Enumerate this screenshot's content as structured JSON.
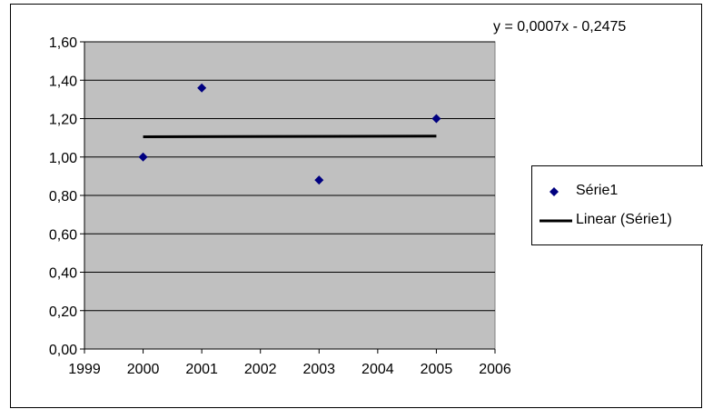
{
  "chart_data": {
    "type": "scatter",
    "x_ticks": [
      "1999",
      "2000",
      "2001",
      "2002",
      "2003",
      "2004",
      "2005",
      "2006"
    ],
    "y_ticks": [
      "0,00",
      "0,20",
      "0,40",
      "0,60",
      "0,80",
      "1,00",
      "1,20",
      "1,40",
      "1,60"
    ],
    "xlim": [
      1999,
      2006
    ],
    "ylim": [
      0,
      1.6
    ],
    "series": [
      {
        "name": "Série1",
        "x": [
          2000,
          2001,
          2003,
          2005
        ],
        "y": [
          1.0,
          1.36,
          0.88,
          1.2
        ]
      }
    ],
    "trendline": {
      "name": "Linear (Série1)",
      "equation": "y = 0,0007x - 0,2475",
      "x": [
        2000,
        2005
      ],
      "y": [
        1.1055,
        1.109
      ]
    },
    "grid": "horizontal",
    "legend_position": "right",
    "colors": {
      "plot_background": "#c0c0c0",
      "marker": "#000080",
      "trendline": "#000000",
      "gridline": "#000000"
    }
  }
}
